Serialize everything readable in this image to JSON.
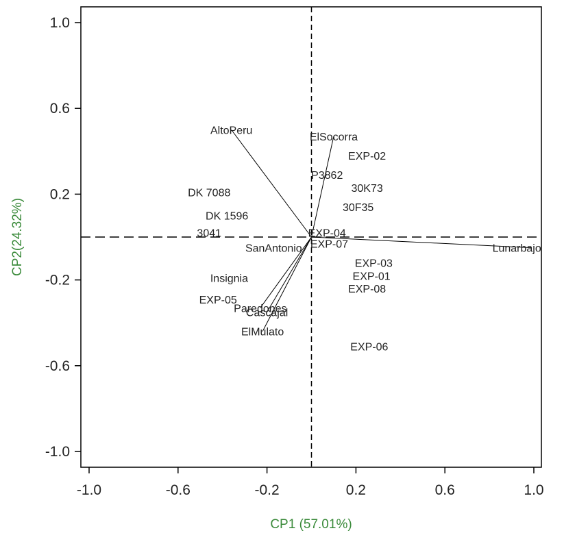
{
  "chart_data": {
    "type": "biplot",
    "xlabel": "CP1 (57.01%)",
    "ylabel": "CP2(24.32%)",
    "xlim": [
      -1.0,
      1.0
    ],
    "ylim": [
      -1.0,
      1.0
    ],
    "xticks": [
      "-1.0",
      "-0.6",
      "-0.2",
      "0.2",
      "0.6",
      "1.0"
    ],
    "yticks": [
      "1.0",
      "0.6",
      "0.2",
      "-0.2",
      "-0.6",
      "-1.0"
    ],
    "axis_title_color": "#3a8a3a",
    "reference_lines": {
      "x": 0,
      "y": 0,
      "style": "dashed"
    },
    "genotypes": [
      {
        "label": "DK 7088",
        "x": -0.46,
        "y": 0.21
      },
      {
        "label": "DK 1596",
        "x": -0.38,
        "y": 0.1
      },
      {
        "label": "3041",
        "x": -0.46,
        "y": 0.02
      },
      {
        "label": "30K73",
        "x": 0.25,
        "y": 0.23
      },
      {
        "label": "30F35",
        "x": 0.21,
        "y": 0.14
      },
      {
        "label": "P3862",
        "x": 0.07,
        "y": 0.29
      },
      {
        "label": "EXP-02",
        "x": 0.25,
        "y": 0.38
      },
      {
        "label": "EXP-04",
        "x": 0.07,
        "y": 0.02
      },
      {
        "label": "EXP-07",
        "x": 0.08,
        "y": -0.03
      },
      {
        "label": "EXP-03",
        "x": 0.28,
        "y": -0.12
      },
      {
        "label": "EXP-01",
        "x": 0.27,
        "y": -0.18
      },
      {
        "label": "EXP-08",
        "x": 0.25,
        "y": -0.24
      },
      {
        "label": "EXP-05",
        "x": -0.42,
        "y": -0.29
      },
      {
        "label": "EXP-06",
        "x": 0.26,
        "y": -0.51
      },
      {
        "label": "Insignia",
        "x": -0.37,
        "y": -0.19
      },
      {
        "label": "SanAntonio",
        "x": -0.17,
        "y": -0.05
      }
    ],
    "environments": [
      {
        "label": "AltoPeru",
        "x": -0.36,
        "y": 0.5
      },
      {
        "label": "ElSocorra",
        "x": 0.1,
        "y": 0.47
      },
      {
        "label": "Lunarbajo",
        "x": 0.99,
        "y": -0.05
      },
      {
        "label": "Paredones",
        "x": -0.23,
        "y": -0.33
      },
      {
        "label": "Cascajal",
        "x": -0.2,
        "y": -0.35
      },
      {
        "label": "ElMulato",
        "x": -0.22,
        "y": -0.44
      }
    ]
  }
}
